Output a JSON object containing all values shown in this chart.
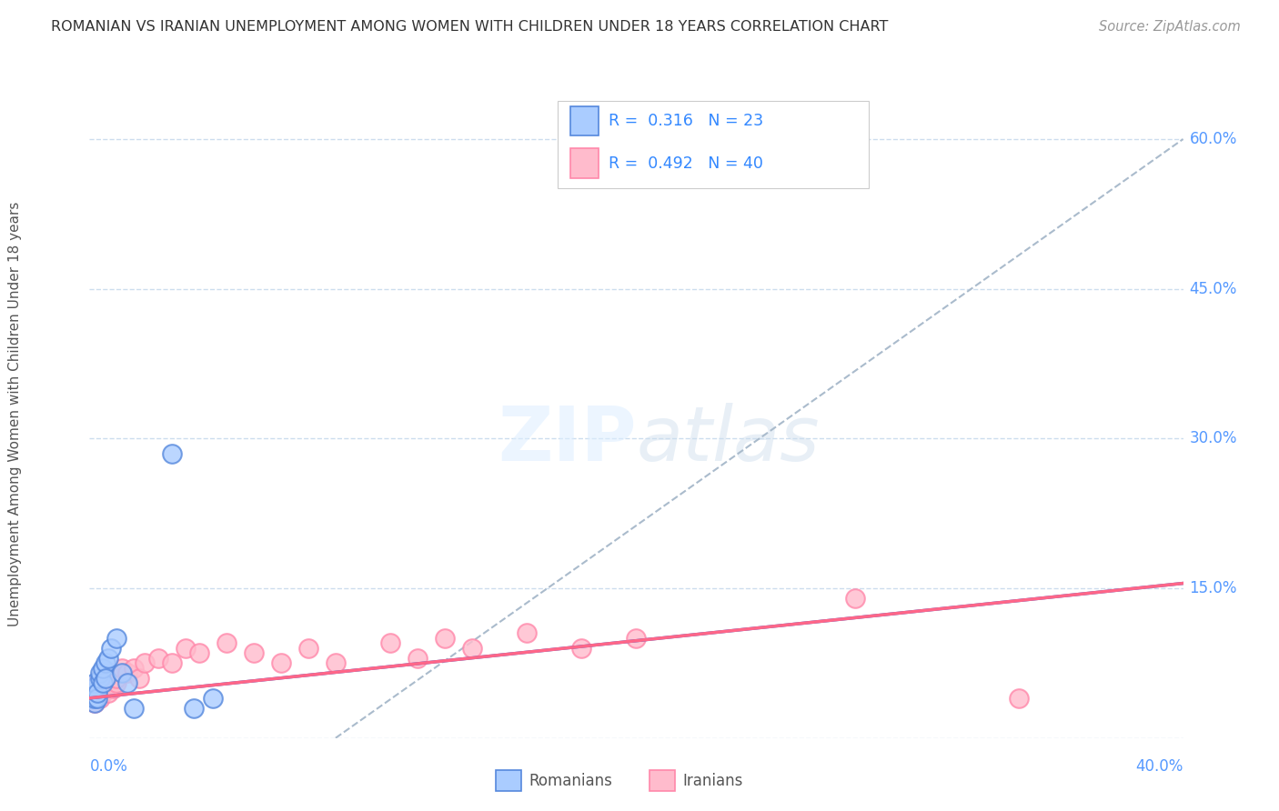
{
  "title": "ROMANIAN VS IRANIAN UNEMPLOYMENT AMONG WOMEN WITH CHILDREN UNDER 18 YEARS CORRELATION CHART",
  "source": "Source: ZipAtlas.com",
  "ylabel": "Unemployment Among Women with Children Under 18 years",
  "xlim": [
    0.0,
    0.4
  ],
  "ylim": [
    0.0,
    0.65
  ],
  "ytick_vals": [
    0.0,
    0.15,
    0.3,
    0.45,
    0.6
  ],
  "ytick_labels": [
    "",
    "15.0%",
    "30.0%",
    "45.0%",
    "60.0%"
  ],
  "romanian_R": 0.316,
  "romanian_N": 23,
  "iranian_R": 0.492,
  "iranian_N": 40,
  "romanian_scatter_face": "#AACCFF",
  "romanian_scatter_edge": "#5588DD",
  "iranian_scatter_face": "#FFBBCC",
  "iranian_scatter_edge": "#FF88AA",
  "romanian_line_color": "#4466CC",
  "iranian_line_color": "#FF6688",
  "ref_line_color": "#AABBCC",
  "background_color": "#FFFFFF",
  "grid_color": "#CCDDEE",
  "title_color": "#333333",
  "axis_label_color": "#5599FF",
  "romanians_x": [
    0.001,
    0.001,
    0.001,
    0.002,
    0.002,
    0.002,
    0.003,
    0.003,
    0.004,
    0.004,
    0.005,
    0.005,
    0.006,
    0.006,
    0.007,
    0.008,
    0.01,
    0.012,
    0.014,
    0.016,
    0.03,
    0.038,
    0.045
  ],
  "romanians_y": [
    0.04,
    0.045,
    0.05,
    0.035,
    0.04,
    0.055,
    0.04,
    0.045,
    0.06,
    0.065,
    0.055,
    0.07,
    0.075,
    0.06,
    0.08,
    0.09,
    0.1,
    0.065,
    0.055,
    0.03,
    0.285,
    0.03,
    0.04
  ],
  "iranians_x": [
    0.001,
    0.002,
    0.002,
    0.003,
    0.003,
    0.004,
    0.004,
    0.005,
    0.005,
    0.006,
    0.006,
    0.007,
    0.008,
    0.008,
    0.009,
    0.01,
    0.01,
    0.012,
    0.014,
    0.016,
    0.018,
    0.02,
    0.025,
    0.03,
    0.035,
    0.04,
    0.05,
    0.06,
    0.07,
    0.08,
    0.09,
    0.11,
    0.12,
    0.13,
    0.14,
    0.16,
    0.18,
    0.2,
    0.28,
    0.34
  ],
  "iranians_y": [
    0.04,
    0.035,
    0.045,
    0.05,
    0.055,
    0.04,
    0.06,
    0.045,
    0.055,
    0.05,
    0.06,
    0.045,
    0.055,
    0.065,
    0.05,
    0.055,
    0.06,
    0.07,
    0.065,
    0.07,
    0.06,
    0.075,
    0.08,
    0.075,
    0.09,
    0.085,
    0.095,
    0.085,
    0.075,
    0.09,
    0.075,
    0.095,
    0.08,
    0.1,
    0.09,
    0.105,
    0.09,
    0.1,
    0.14,
    0.04
  ],
  "ro_line_x0": 0.0,
  "ro_line_y0": 0.04,
  "ro_line_x1": 0.4,
  "ro_line_y1": 0.155,
  "ir_line_x0": 0.0,
  "ir_line_y0": 0.04,
  "ir_line_x1": 0.4,
  "ir_line_y1": 0.155,
  "ref_line_x0": 0.09,
  "ref_line_y0": 0.0,
  "ref_line_x1": 0.4,
  "ref_line_y1": 0.6
}
